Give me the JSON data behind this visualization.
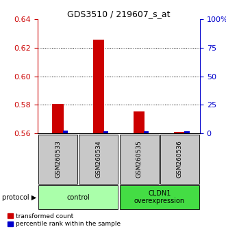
{
  "title": "GDS3510 / 219607_s_at",
  "samples": [
    "GSM260533",
    "GSM260534",
    "GSM260535",
    "GSM260536"
  ],
  "red_values": [
    0.5805,
    0.6255,
    0.5755,
    0.561
  ],
  "blue_values": [
    2.5,
    2.0,
    1.5,
    1.5
  ],
  "red_baseline": 0.56,
  "blue_baseline": 0.0,
  "ylim_left": [
    0.56,
    0.64
  ],
  "ylim_right": [
    0,
    100
  ],
  "yticks_left": [
    0.56,
    0.58,
    0.6,
    0.62,
    0.64
  ],
  "yticks_right": [
    0,
    25,
    50,
    75,
    100
  ],
  "ytick_labels_right": [
    "0",
    "25",
    "50",
    "75",
    "100%"
  ],
  "grid_values": [
    0.58,
    0.6,
    0.62
  ],
  "red_color": "#cc0000",
  "blue_color": "#0000cc",
  "protocols": [
    {
      "label": "control",
      "samples": [
        0,
        1
      ],
      "color": "#aaffaa"
    },
    {
      "label": "CLDN1\noverexpression",
      "samples": [
        2,
        3
      ],
      "color": "#44dd44"
    }
  ],
  "legend_red": "transformed count",
  "legend_blue": "percentile rank within the sample",
  "protocol_label": "protocol",
  "sample_box_color": "#c8c8c8",
  "left_axis_color": "#cc0000",
  "right_axis_color": "#0000cc"
}
